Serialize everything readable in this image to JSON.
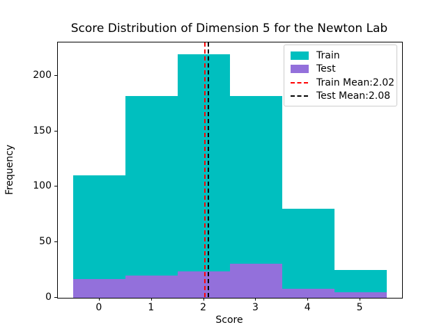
{
  "title": "Score Distribution of Dimension 5 for the Newton Lab",
  "chart_data": {
    "type": "bar",
    "subtype": "histogram-overlay",
    "title": "Score Distribution of Dimension 5 for the Newton Lab",
    "xlabel": "Score",
    "ylabel": "Frequency",
    "xlim": [
      -0.8,
      5.8
    ],
    "ylim": [
      0,
      229.95
    ],
    "x_ticks": [
      0,
      1,
      2,
      3,
      4,
      5
    ],
    "y_ticks": [
      0,
      50,
      100,
      150,
      200
    ],
    "bin_edges": [
      -0.5,
      0.5,
      1.5,
      2.5,
      3.5,
      4.5,
      5.5
    ],
    "grid": false,
    "series": [
      {
        "name": "Train",
        "color": "#00bfbf",
        "values": [
          110,
          182,
          219,
          182,
          80,
          25
        ]
      },
      {
        "name": "Test",
        "color": "#9370db",
        "values": [
          17,
          20,
          24,
          31,
          8,
          5
        ]
      }
    ],
    "mean_lines": [
      {
        "label": "Train Mean:2.02",
        "value": 2.02,
        "color": "#ff0000",
        "style": "dashed"
      },
      {
        "label": "Test Mean:2.08",
        "value": 2.08,
        "color": "#000000",
        "style": "dashed"
      }
    ],
    "legend": {
      "position": "upper right",
      "entries": [
        "Train",
        "Test",
        "Train Mean:2.02",
        "Test Mean:2.08"
      ]
    }
  }
}
